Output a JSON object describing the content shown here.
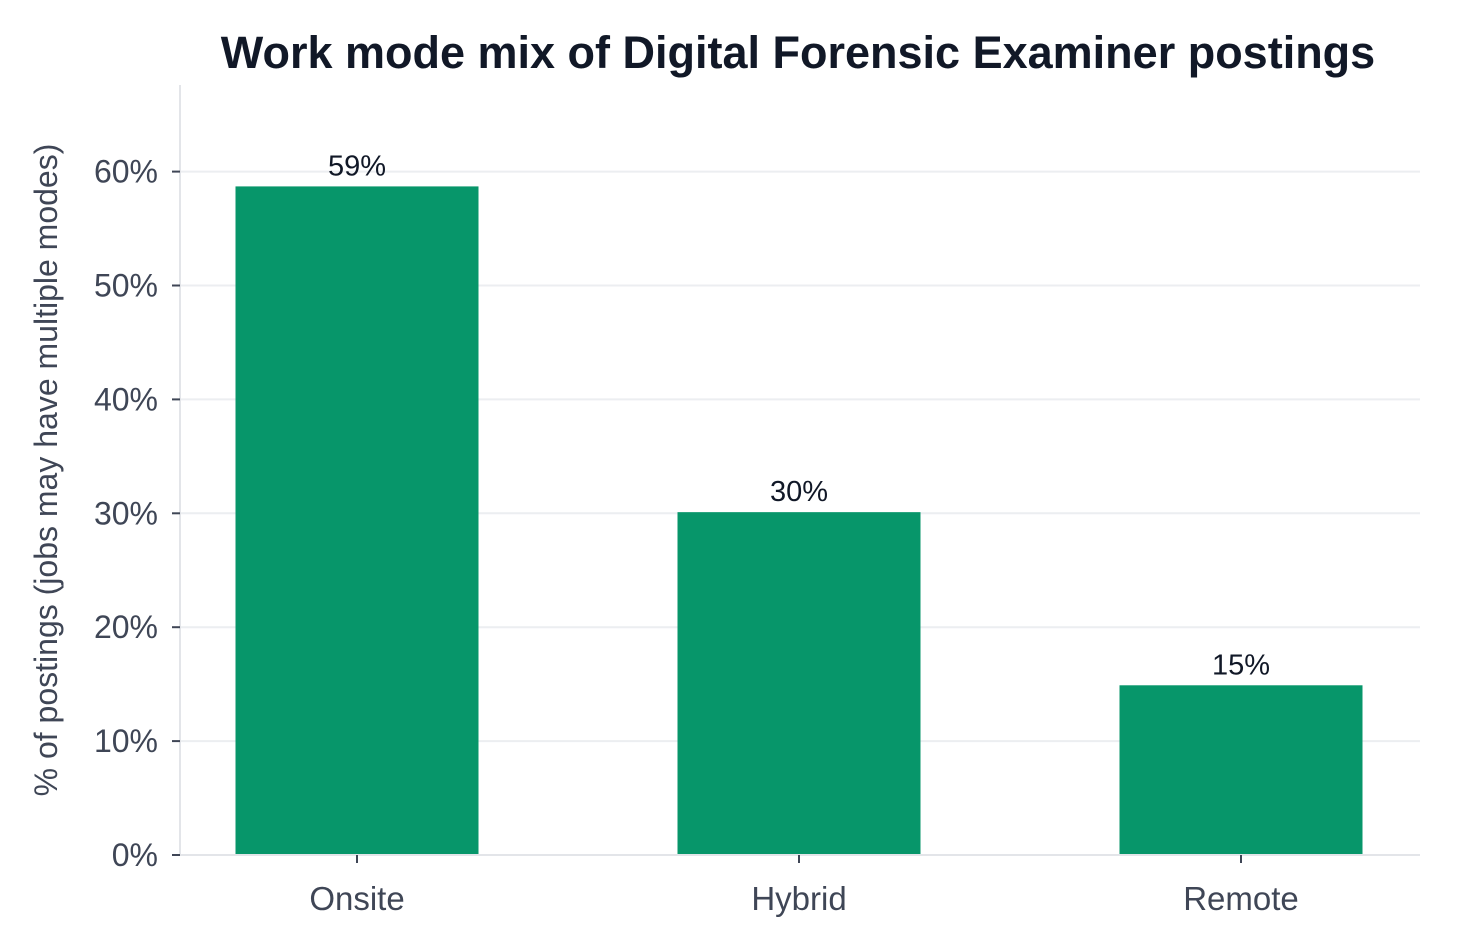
{
  "chart_data": {
    "type": "bar",
    "title": "Work mode mix of Digital Forensic Examiner postings",
    "xlabel": "",
    "ylabel": "% of postings (jobs may have multiple modes)",
    "categories": [
      "Onsite",
      "Hybrid",
      "Remote"
    ],
    "values": [
      58.7,
      30.1,
      14.9
    ],
    "data_labels": [
      "59%",
      "30%",
      "15%"
    ],
    "ylim": [
      0,
      67
    ],
    "yticks": [
      0,
      10,
      20,
      30,
      40,
      50,
      60
    ],
    "ytick_labels": [
      "0%",
      "10%",
      "20%",
      "30%",
      "40%",
      "50%",
      "60%"
    ],
    "grid": "horizontal",
    "legend": "none",
    "colors": {
      "bar": "#07966a",
      "title": "#111827",
      "text": "#3f4656",
      "grid": "#eceef1"
    }
  }
}
